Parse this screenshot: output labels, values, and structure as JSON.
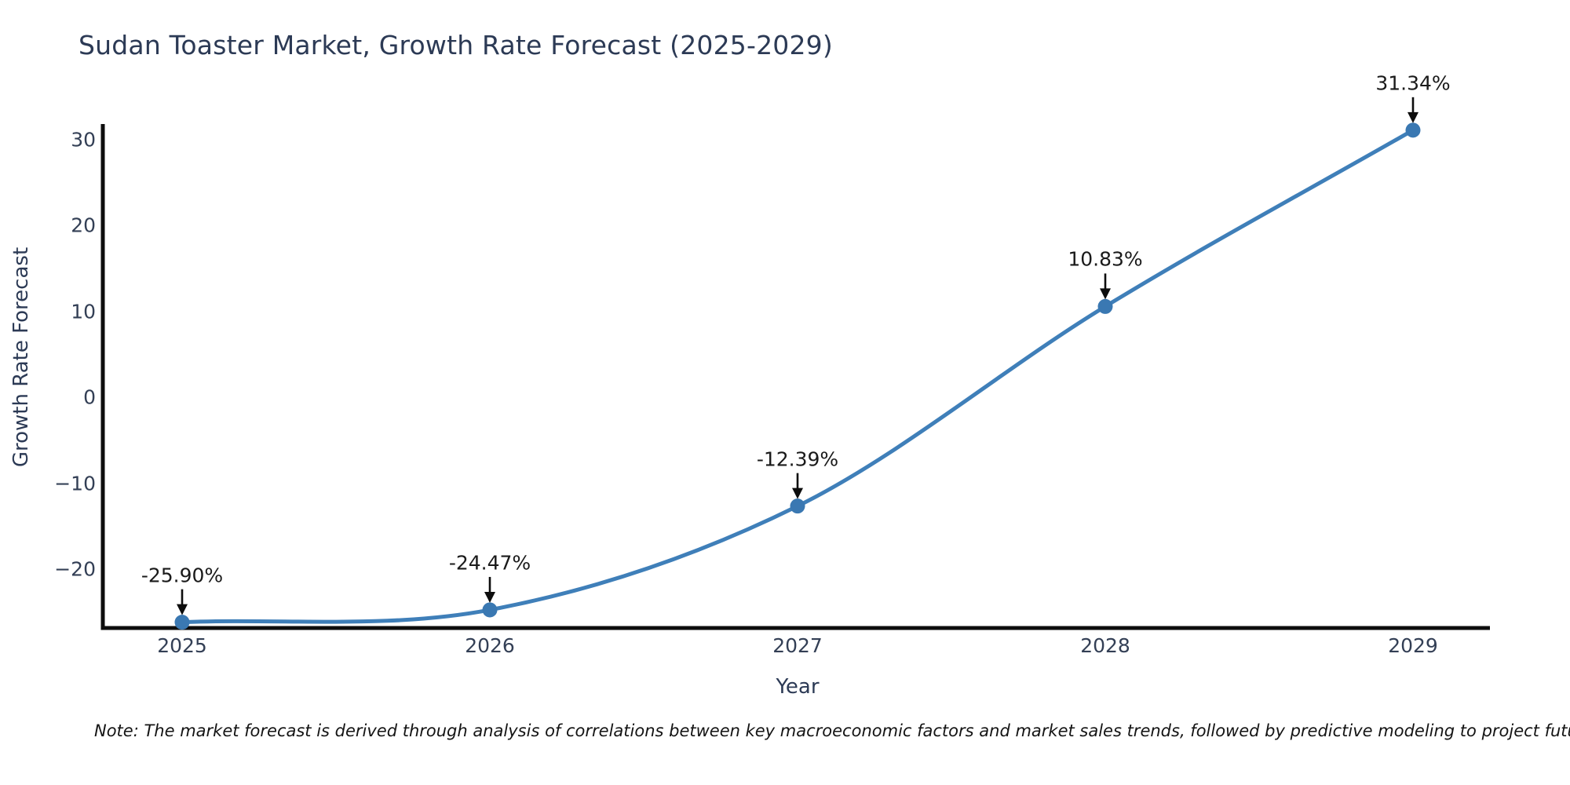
{
  "note": "Note: The market forecast is derived through analysis of correlations between key macroeconomic factors and market sales trends, followed by predictive modeling to project future sales.",
  "colors": {
    "line": "#3f7fb9",
    "marker": "#3a78b2",
    "spine": "#0d0d0d",
    "arrow": "#0d0d0d",
    "title_text": "#2c3a55",
    "tick_text": "#333f55",
    "annotation_text": "#1a1a1a"
  },
  "chart_data": {
    "type": "line",
    "title": "Sudan Toaster Market, Growth Rate Forecast (2025-2029)",
    "xlabel": "Year",
    "ylabel": "Growth Rate Forecast",
    "x": [
      2025,
      2026,
      2027,
      2028,
      2029
    ],
    "values": [
      -25.9,
      -24.47,
      -12.39,
      10.83,
      31.34
    ],
    "point_labels": [
      "-25.90%",
      "-24.47%",
      "-12.39%",
      "10.83%",
      "31.34%"
    ],
    "xtick_labels": [
      "2025",
      "2026",
      "2027",
      "2028",
      "2029"
    ],
    "ytick_values": [
      30,
      20,
      10,
      0,
      -10,
      -20
    ],
    "ytick_labels": [
      "30",
      "20",
      "10",
      "0",
      "−10",
      "−20"
    ],
    "ylim": [
      -27.5,
      32
    ],
    "xlim": [
      2024.74,
      2029.25
    ],
    "grid": false,
    "legend": "none",
    "curve": "smooth",
    "annotations": "arrow-down-to-point"
  }
}
